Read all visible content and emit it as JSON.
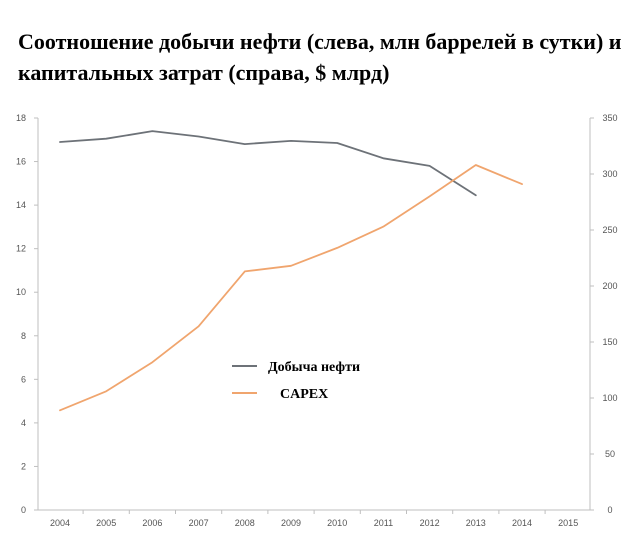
{
  "chart_data": {
    "type": "line",
    "title": "Соотношение добычи нефти (слева, млн баррелей в сутки) и капитальных затрат (справа, $ млрд)",
    "x": [
      "2004",
      "2005",
      "2006",
      "2007",
      "2008",
      "2009",
      "2010",
      "2011",
      "2012",
      "2013",
      "2014",
      "2015"
    ],
    "y_left": {
      "range": [
        0,
        18
      ],
      "ticks": [
        "0",
        "2",
        "4",
        "6",
        "8",
        "10",
        "12",
        "14",
        "16",
        "18"
      ]
    },
    "y_right": {
      "range": [
        0,
        350
      ],
      "ticks": [
        "0",
        "50",
        "100",
        "150",
        "200",
        "250",
        "300",
        "350"
      ]
    },
    "series": [
      {
        "name": "Добыча нефти",
        "axis": "left",
        "color": "#6d7278",
        "values": [
          16.9,
          17.05,
          17.4,
          17.15,
          16.8,
          16.95,
          16.85,
          16.15,
          15.8,
          14.45,
          null,
          null
        ]
      },
      {
        "name": "CAPEX",
        "axis": "right",
        "color": "#f0a56e",
        "values": [
          89,
          106,
          132,
          164,
          213,
          218,
          234,
          253,
          280,
          308,
          291,
          null
        ]
      }
    ],
    "legend_position": "center",
    "grid": false
  }
}
